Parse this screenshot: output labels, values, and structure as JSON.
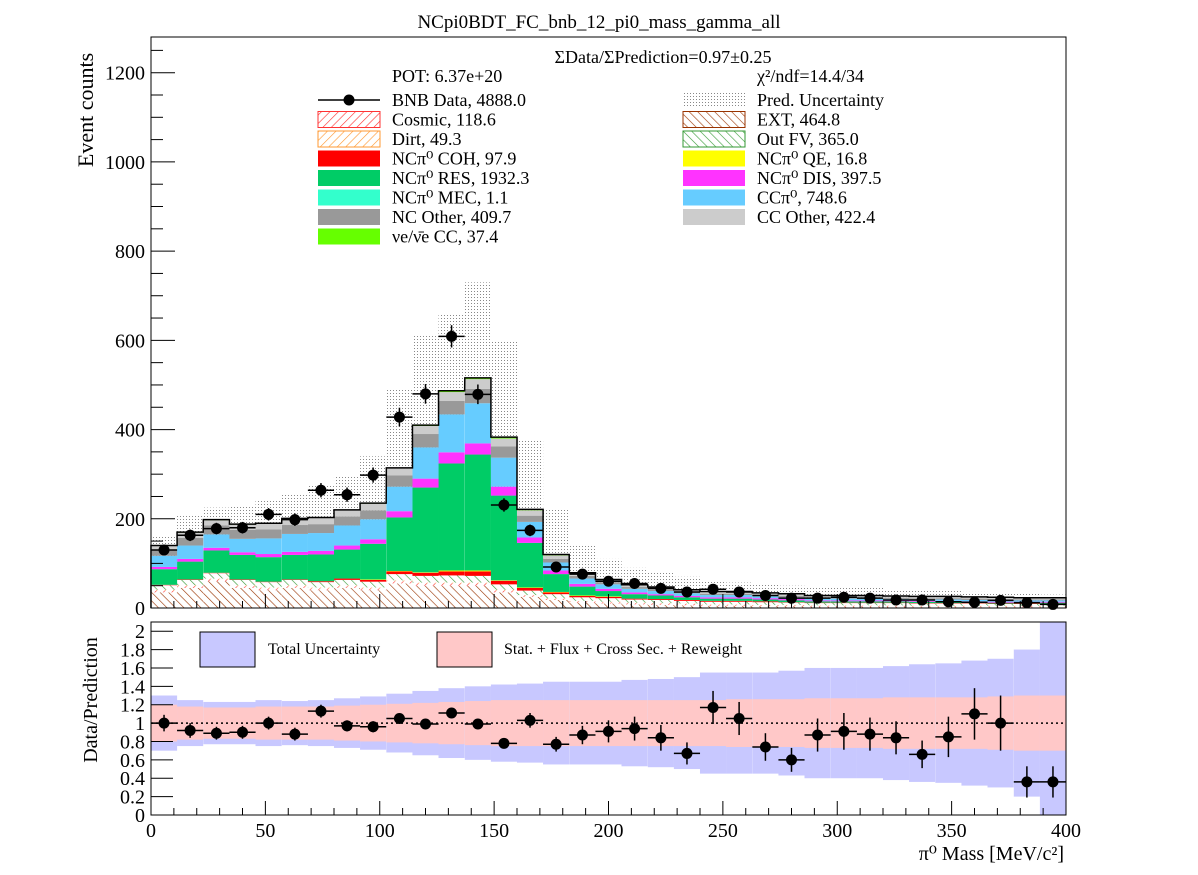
{
  "title": "NCpi0BDT_FC_bnb_12_pi0_mass_gamma_all",
  "ratio_text": "ΣData/ΣPrediction=0.97±0.25",
  "pot_text": "POT: 6.37e+20",
  "chi2_text": "χ²/ndf=14.4/34",
  "colors": {
    "nc_res": "#00cc66",
    "cc_pi0": "#66ccff",
    "nc_dis": "#ff33ff",
    "nc_other": "#999999",
    "cc_other": "#cccccc",
    "nc_coh": "#ff0000",
    "nc_qe": "#ffff00",
    "nc_mec": "#33ffcc",
    "nue_cc": "#66ff00",
    "cosmic": "#ff3333",
    "dirt": "#ff9933",
    "ext": "#993300",
    "outfv": "#339933",
    "uncert_fill": "#c8c8ff",
    "stat_fill": "#ffc8c8"
  },
  "legend": {
    "left": [
      {
        "key": "data",
        "label": "BNB Data, 4888.0"
      },
      {
        "key": "cosmic",
        "label": "Cosmic, 118.6"
      },
      {
        "key": "dirt",
        "label": "Dirt, 49.3"
      },
      {
        "key": "nc_coh",
        "label": "NCπ⁰ COH,  97.9"
      },
      {
        "key": "nc_res",
        "label": "NCπ⁰ RES,  1932.3"
      },
      {
        "key": "nc_mec",
        "label": "NCπ⁰ MEC,  1.1"
      },
      {
        "key": "nc_other",
        "label": "NC Other, 409.7"
      },
      {
        "key": "nue_cc",
        "label": "νe/ν̄e CC, 37.4"
      }
    ],
    "right": [
      {
        "key": "uncert",
        "label": "Pred. Uncertainty"
      },
      {
        "key": "ext",
        "label": "EXT, 464.8"
      },
      {
        "key": "outfv",
        "label": "Out FV, 365.0"
      },
      {
        "key": "nc_qe",
        "label": "NCπ⁰ QE,  16.8"
      },
      {
        "key": "nc_dis",
        "label": "NCπ⁰ DIS,  397.5"
      },
      {
        "key": "cc_pi0",
        "label": "CCπ⁰, 748.6"
      },
      {
        "key": "cc_other",
        "label": "CC Other, 422.4"
      }
    ]
  },
  "ratio_legend": {
    "total": "Total Uncertainty",
    "stat": "Stat. + Flux + Cross Sec. + Reweight"
  },
  "chart_data": {
    "type": "bar",
    "stacked": true,
    "xlabel": "π⁰ Mass [MeV/c²]",
    "ylabel": "Event counts",
    "ratio_ylabel": "Data/Prediction",
    "xlim": [
      0,
      400
    ],
    "ylim": [
      0,
      1280
    ],
    "ratio_ylim": [
      0,
      2.1
    ],
    "bin_width": 11.4286,
    "x_ticks": [
      0,
      50,
      100,
      150,
      200,
      250,
      300,
      350,
      400
    ],
    "y_ticks": [
      0,
      200,
      400,
      600,
      800,
      1000,
      1200
    ],
    "ratio_y_ticks": [
      0,
      0.2,
      0.4,
      0.6,
      0.8,
      1,
      1.2,
      1.4,
      1.6,
      1.8,
      2
    ],
    "bin_centers": [
      5.7,
      17.1,
      28.6,
      40.0,
      51.4,
      62.9,
      74.3,
      85.7,
      97.1,
      108.6,
      120.0,
      131.4,
      142.9,
      154.3,
      165.7,
      177.1,
      188.6,
      200.0,
      211.4,
      222.9,
      234.3,
      245.7,
      257.1,
      268.6,
      280.0,
      291.4,
      302.9,
      314.3,
      325.7,
      337.1,
      348.6,
      360.0,
      371.4,
      382.9,
      394.3
    ],
    "series": [
      {
        "name": "EXT",
        "key": "ext",
        "values": [
          35,
          45,
          60,
          45,
          40,
          45,
          40,
          45,
          40,
          55,
          50,
          50,
          50,
          35,
          25,
          18,
          12,
          10,
          8,
          7,
          6,
          5,
          5,
          4,
          4,
          3,
          3,
          3,
          3,
          2,
          2,
          2,
          2,
          2,
          2
        ]
      },
      {
        "name": "Cosmic",
        "key": "cosmic",
        "values": [
          4,
          4,
          4,
          4,
          4,
          4,
          4,
          4,
          4,
          5,
          5,
          5,
          5,
          4,
          3,
          3,
          3,
          3,
          3,
          3,
          3,
          2,
          2,
          2,
          2,
          2,
          2,
          2,
          2,
          2,
          2,
          2,
          2,
          2,
          2
        ]
      },
      {
        "name": "Dirt",
        "key": "dirt",
        "values": [
          2,
          2,
          2,
          2,
          2,
          2,
          2,
          2,
          2,
          2,
          2,
          2,
          2,
          2,
          1,
          1,
          1,
          1,
          1,
          1,
          1,
          1,
          1,
          1,
          1,
          1,
          1,
          1,
          1,
          1,
          1,
          1,
          1,
          1,
          1
        ]
      },
      {
        "name": "Out FV",
        "key": "outfv",
        "values": [
          10,
          12,
          12,
          12,
          12,
          12,
          12,
          12,
          13,
          14,
          15,
          16,
          15,
          12,
          10,
          9,
          8,
          8,
          7,
          7,
          6,
          6,
          6,
          6,
          5,
          5,
          5,
          5,
          5,
          5,
          5,
          5,
          4,
          4,
          4
        ]
      },
      {
        "name": "NCπ⁰ COH",
        "key": "nc_coh",
        "values": [
          1,
          1,
          1,
          1,
          1,
          1,
          2,
          3,
          4,
          6,
          7,
          9,
          10,
          8,
          6,
          4,
          3,
          3,
          2,
          2,
          2,
          2,
          2,
          2,
          1,
          1,
          1,
          1,
          1,
          1,
          1,
          1,
          1,
          1,
          1
        ]
      },
      {
        "name": "NCπ⁰ QE",
        "key": "nc_qe",
        "values": [
          0,
          0,
          0,
          0,
          0,
          0,
          0,
          0,
          1,
          1,
          1,
          2,
          2,
          1,
          1,
          1,
          1,
          1,
          0,
          0,
          0,
          0,
          0,
          0,
          0,
          0,
          0,
          0,
          0,
          0,
          0,
          0,
          0,
          0,
          0
        ]
      },
      {
        "name": "NCπ⁰ RES",
        "key": "nc_res",
        "values": [
          35,
          40,
          50,
          55,
          55,
          55,
          60,
          65,
          80,
          120,
          190,
          240,
          260,
          190,
          100,
          40,
          20,
          12,
          10,
          8,
          6,
          5,
          5,
          4,
          4,
          3,
          3,
          3,
          3,
          3,
          3,
          2,
          2,
          2,
          2
        ]
      },
      {
        "name": "NCπ⁰ MEC",
        "key": "nc_mec",
        "values": [
          0,
          0,
          0,
          0,
          0,
          0,
          0,
          0,
          0,
          0,
          0,
          0,
          0,
          0,
          0,
          0,
          0,
          0,
          0,
          0,
          0,
          0,
          0,
          0,
          0,
          0,
          0,
          0,
          0,
          0,
          0,
          0,
          0,
          0,
          0
        ]
      },
      {
        "name": "NCπ⁰ DIS",
        "key": "nc_dis",
        "values": [
          5,
          6,
          6,
          6,
          7,
          7,
          8,
          9,
          10,
          14,
          20,
          25,
          25,
          20,
          12,
          8,
          6,
          5,
          4,
          3,
          3,
          3,
          3,
          3,
          3,
          2,
          2,
          2,
          2,
          2,
          2,
          2,
          2,
          2,
          2
        ]
      },
      {
        "name": "CCπ⁰",
        "key": "cc_pi0",
        "values": [
          25,
          30,
          30,
          30,
          35,
          40,
          40,
          45,
          45,
          55,
          70,
          85,
          90,
          65,
          35,
          18,
          12,
          10,
          8,
          7,
          6,
          5,
          5,
          4,
          4,
          4,
          4,
          4,
          3,
          3,
          3,
          3,
          3,
          3,
          3
        ]
      },
      {
        "name": "NC Other",
        "key": "nc_other",
        "values": [
          14,
          17,
          20,
          20,
          20,
          20,
          20,
          20,
          20,
          25,
          30,
          30,
          32,
          25,
          14,
          8,
          6,
          5,
          4,
          4,
          3,
          3,
          3,
          3,
          3,
          3,
          3,
          3,
          3,
          3,
          3,
          3,
          3,
          2,
          2
        ]
      },
      {
        "name": "CC Other",
        "key": "cc_other",
        "values": [
          8,
          12,
          12,
          12,
          13,
          14,
          14,
          14,
          15,
          16,
          18,
          20,
          22,
          18,
          12,
          8,
          6,
          5,
          4,
          4,
          4,
          4,
          4,
          4,
          4,
          3,
          3,
          3,
          3,
          3,
          3,
          3,
          3,
          3,
          3
        ]
      },
      {
        "name": "νe/ν̄e CC",
        "key": "nue_cc",
        "values": [
          1,
          1,
          1,
          1,
          1,
          1,
          1,
          1,
          1,
          1,
          2,
          3,
          3,
          3,
          2,
          2,
          1,
          1,
          1,
          1,
          1,
          1,
          1,
          1,
          1,
          1,
          1,
          1,
          1,
          1,
          1,
          1,
          1,
          1,
          1
        ]
      }
    ],
    "uncertainty_band": {
      "lower": [
        110,
        130,
        150,
        150,
        150,
        160,
        170,
        170,
        180,
        250,
        340,
        380,
        390,
        270,
        190,
        110,
        70,
        55,
        45,
        40,
        35,
        30,
        30,
        28,
        26,
        22,
        22,
        22,
        20,
        18,
        17,
        16,
        15,
        14,
        13
      ],
      "upper": [
        160,
        210,
        225,
        230,
        240,
        255,
        275,
        295,
        340,
        490,
        610,
        660,
        730,
        600,
        375,
        220,
        140,
        110,
        90,
        80,
        70,
        62,
        57,
        54,
        50,
        46,
        45,
        45,
        42,
        40,
        38,
        36,
        34,
        32,
        30
      ]
    },
    "data_points": {
      "values": [
        130,
        163,
        178,
        180,
        210,
        198,
        264,
        254,
        298,
        428,
        480,
        609,
        479,
        231,
        174,
        92,
        76,
        60,
        55,
        44,
        36,
        42,
        36,
        28,
        22,
        22,
        24,
        22,
        18,
        18,
        14,
        13,
        17,
        12,
        8
      ],
      "errors": [
        12,
        13,
        13,
        13,
        14,
        14,
        16,
        16,
        17,
        21,
        22,
        25,
        22,
        15,
        13,
        10,
        9,
        8,
        7,
        7,
        6,
        6,
        6,
        5,
        5,
        5,
        5,
        5,
        4,
        4,
        4,
        4,
        4,
        3,
        3
      ]
    },
    "ratio": {
      "values": [
        1.0,
        0.92,
        0.89,
        0.9,
        1.0,
        0.88,
        1.13,
        0.97,
        0.96,
        1.05,
        0.99,
        1.11,
        0.99,
        0.78,
        1.03,
        0.77,
        0.87,
        0.91,
        0.94,
        0.84,
        0.67,
        1.17,
        1.05,
        0.74,
        0.6,
        0.87,
        0.91,
        0.88,
        0.84,
        0.66,
        0.85,
        1.1,
        1.0,
        0.36,
        0.36
      ],
      "errors": [
        0.09,
        0.08,
        0.07,
        0.07,
        0.07,
        0.07,
        0.07,
        0.06,
        0.06,
        0.05,
        0.05,
        0.05,
        0.05,
        0.05,
        0.08,
        0.08,
        0.1,
        0.12,
        0.13,
        0.14,
        0.12,
        0.18,
        0.18,
        0.15,
        0.13,
        0.18,
        0.2,
        0.18,
        0.18,
        0.15,
        0.22,
        0.28,
        0.3,
        0.17,
        0.17
      ],
      "total_lower": [
        0.7,
        0.75,
        0.77,
        0.77,
        0.75,
        0.76,
        0.75,
        0.73,
        0.71,
        0.68,
        0.65,
        0.62,
        0.6,
        0.58,
        0.57,
        0.55,
        0.55,
        0.55,
        0.53,
        0.52,
        0.5,
        0.45,
        0.45,
        0.45,
        0.43,
        0.4,
        0.4,
        0.4,
        0.38,
        0.36,
        0.35,
        0.32,
        0.3,
        0.2,
        0.0
      ],
      "total_upper": [
        1.3,
        1.25,
        1.23,
        1.23,
        1.25,
        1.24,
        1.25,
        1.27,
        1.29,
        1.32,
        1.35,
        1.38,
        1.4,
        1.42,
        1.43,
        1.45,
        1.45,
        1.45,
        1.47,
        1.48,
        1.5,
        1.55,
        1.55,
        1.55,
        1.57,
        1.6,
        1.6,
        1.6,
        1.62,
        1.64,
        1.65,
        1.68,
        1.7,
        1.8,
        2.1
      ],
      "stat_lower": [
        0.8,
        0.82,
        0.83,
        0.83,
        0.82,
        0.82,
        0.82,
        0.81,
        0.8,
        0.79,
        0.78,
        0.77,
        0.76,
        0.75,
        0.75,
        0.75,
        0.75,
        0.75,
        0.75,
        0.75,
        0.75,
        0.75,
        0.74,
        0.74,
        0.74,
        0.73,
        0.73,
        0.73,
        0.72,
        0.72,
        0.72,
        0.72,
        0.71,
        0.7,
        0.7
      ],
      "stat_upper": [
        1.2,
        1.18,
        1.17,
        1.17,
        1.18,
        1.18,
        1.18,
        1.19,
        1.2,
        1.21,
        1.22,
        1.23,
        1.24,
        1.25,
        1.25,
        1.25,
        1.25,
        1.25,
        1.25,
        1.25,
        1.25,
        1.25,
        1.26,
        1.26,
        1.26,
        1.27,
        1.27,
        1.27,
        1.28,
        1.28,
        1.28,
        1.28,
        1.29,
        1.3,
        1.3
      ]
    }
  }
}
